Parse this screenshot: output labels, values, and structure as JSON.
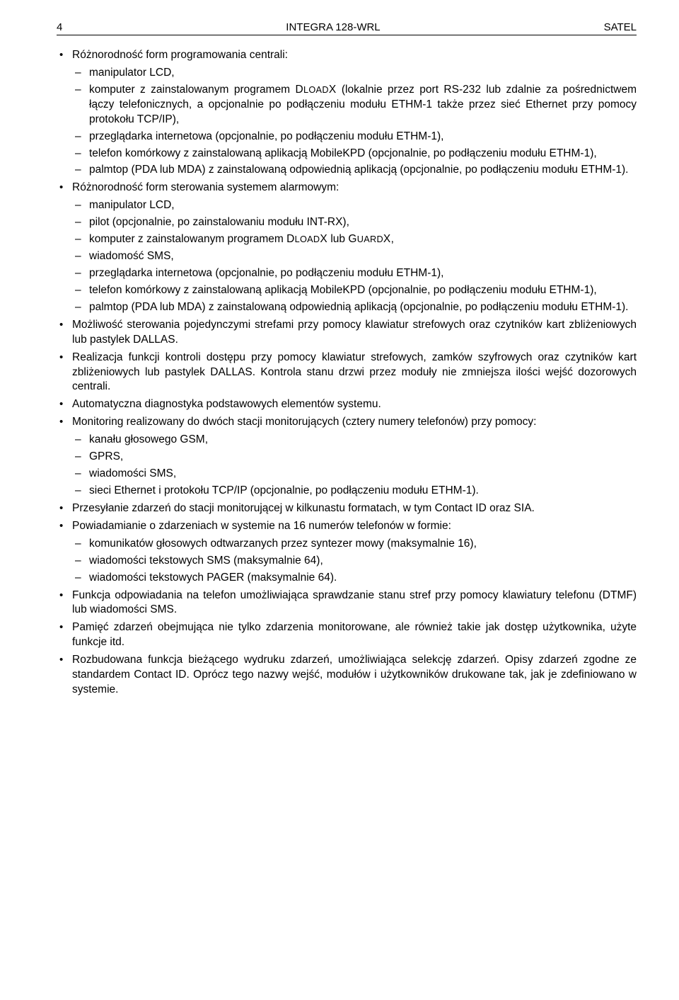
{
  "header": {
    "page_num": "4",
    "title_center": "INTEGRA 128-WRL",
    "title_right": "SATEL"
  },
  "items": [
    {
      "text": "Różnorodność form programowania centrali:",
      "sub": [
        "manipulator LCD,",
        "komputer z zainstalowanym programem DLOADX (lokalnie przez port RS-232 lub zdalnie za pośrednictwem łączy telefonicznych, a opcjonalnie po podłączeniu modułu ETHM-1 także przez sieć Ethernet przy pomocy protokołu TCP/IP),",
        "przeglądarka internetowa (opcjonalnie, po podłączeniu modułu ETHM-1),",
        "telefon komórkowy z zainstalowaną aplikacją MobileKPD (opcjonalnie, po podłączeniu modułu ETHM-1),",
        "palmtop (PDA lub MDA) z zainstalowaną odpowiednią aplikacją (opcjonalnie, po podłączeniu modułu ETHM-1)."
      ]
    },
    {
      "text": "Różnorodność form sterowania systemem alarmowym:",
      "sub": [
        "manipulator LCD,",
        "pilot (opcjonalnie, po zainstalowaniu modułu INT-RX),",
        "komputer z zainstalowanym programem DLOADX lub GUARDX,",
        "wiadomość SMS,",
        "przeglądarka internetowa (opcjonalnie, po podłączeniu modułu ETHM-1),",
        "telefon komórkowy z zainstalowaną aplikacją MobileKPD (opcjonalnie, po podłączeniu modułu ETHM-1),",
        "palmtop (PDA lub MDA) z zainstalowaną odpowiednią aplikacją (opcjonalnie, po podłączeniu modułu ETHM-1)."
      ]
    },
    {
      "text": "Możliwość sterowania pojedynczymi strefami przy pomocy klawiatur strefowych oraz czytników kart zbliżeniowych lub pastylek DALLAS."
    },
    {
      "text": "Realizacja funkcji kontroli dostępu przy pomocy klawiatur strefowych, zamków szyfrowych oraz czytników kart zbliżeniowych lub pastylek DALLAS. Kontrola stanu drzwi przez moduły nie zmniejsza ilości wejść dozorowych centrali."
    },
    {
      "text": "Automatyczna diagnostyka podstawowych elementów systemu."
    },
    {
      "text": "Monitoring realizowany do dwóch stacji monitorujących (cztery numery telefonów) przy pomocy:",
      "sub": [
        "kanału głosowego GSM,",
        "GPRS,",
        "wiadomości SMS,",
        "sieci Ethernet i protokołu TCP/IP (opcjonalnie, po podłączeniu modułu ETHM-1)."
      ]
    },
    {
      "text": "Przesyłanie zdarzeń do stacji monitorującej w kilkunastu formatach, w tym Contact ID oraz SIA."
    },
    {
      "text": "Powiadamianie o zdarzeniach w systemie na 16 numerów telefonów w formie:",
      "sub": [
        "komunikatów głosowych odtwarzanych przez syntezer mowy (maksymalnie 16),",
        "wiadomości tekstowych SMS (maksymalnie 64),",
        "wiadomości tekstowych PAGER (maksymalnie 64)."
      ]
    },
    {
      "text": "Funkcja odpowiadania na telefon umożliwiająca sprawdzanie stanu stref przy pomocy klawiatury telefonu (DTMF) lub wiadomości SMS."
    },
    {
      "text": "Pamięć zdarzeń obejmująca nie tylko zdarzenia monitorowane, ale również takie jak dostęp użytkownika, użyte funkcje itd."
    },
    {
      "text": "Rozbudowana funkcja bieżącego wydruku zdarzeń, umożliwiająca selekcję zdarzeń. Opisy zdarzeń zgodne ze standardem Contact ID. Oprócz tego nazwy wejść, modułów i użytkowników drukowane tak, jak je zdefiniowano w systemie."
    }
  ]
}
